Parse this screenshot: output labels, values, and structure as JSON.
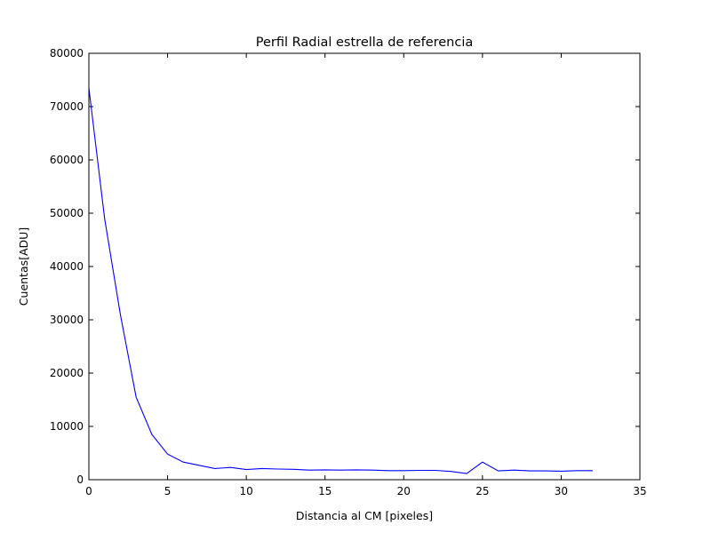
{
  "chart_data": {
    "type": "line",
    "title": "Perfil Radial estrella de referencia",
    "xlabel": "Distancia al CM [pixeles]",
    "ylabel": "Cuentas[ADU]",
    "xlim": [
      0,
      35
    ],
    "ylim": [
      0,
      80000
    ],
    "xticks": [
      0,
      5,
      10,
      15,
      20,
      25,
      30,
      35
    ],
    "yticks": [
      0,
      10000,
      20000,
      30000,
      40000,
      50000,
      60000,
      70000,
      80000
    ],
    "grid": false,
    "series": [
      {
        "color": "#0000ff",
        "x": [
          0,
          1,
          2,
          3,
          4,
          5,
          6,
          7,
          8,
          9,
          10,
          11,
          12,
          13,
          14,
          15,
          16,
          17,
          18,
          19,
          20,
          21,
          22,
          23,
          24,
          25,
          26,
          27,
          28,
          29,
          30,
          31,
          32
        ],
        "y": [
          73500,
          49000,
          31000,
          15500,
          8500,
          4800,
          3300,
          2700,
          2100,
          2300,
          1900,
          2100,
          2000,
          1950,
          1800,
          1850,
          1800,
          1850,
          1800,
          1700,
          1700,
          1750,
          1750,
          1550,
          1150,
          3300,
          1650,
          1800,
          1650,
          1650,
          1600,
          1700,
          1700
        ]
      }
    ]
  }
}
